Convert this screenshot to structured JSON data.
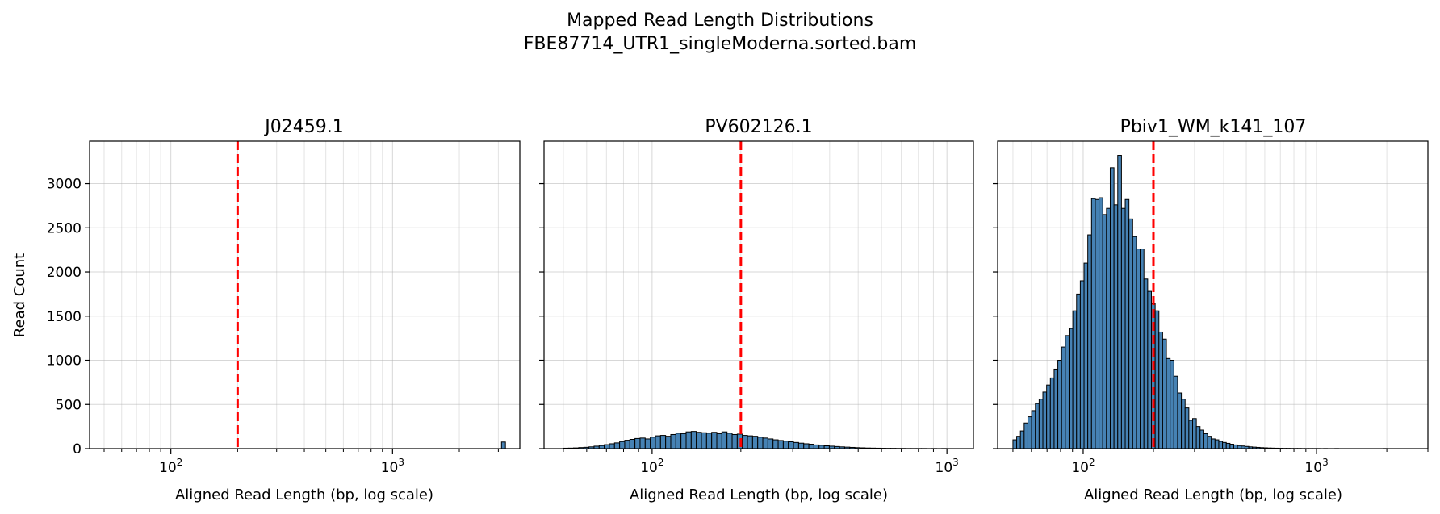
{
  "chart_data": {
    "type": "bar",
    "title_lines": [
      "Mapped Read Length Distributions",
      "FBE87714_UTR1_singleModerna.sorted.bam"
    ],
    "ylabel": "Read Count",
    "grid": true,
    "bar_color": "#4682b4",
    "bar_edge_color": "#000000",
    "reference_line": {
      "x": 200,
      "color": "#ff0000",
      "style": "dashed"
    },
    "y_ticks": [
      0,
      500,
      1000,
      1500,
      2000,
      2500,
      3000
    ],
    "ylim": [
      0,
      3480
    ],
    "panels": [
      {
        "title": "J02459.1",
        "xlabel": "Aligned Read Length (bp, log scale)",
        "xscale": "log",
        "xlim": [
          43,
          3750
        ],
        "x_ticks": [
          {
            "value": 100,
            "base": "10",
            "exp": "2"
          },
          {
            "value": 1000,
            "base": "10",
            "exp": "3"
          }
        ],
        "show_y_tick_labels": true,
        "bins": [
          {
            "x0": 3100,
            "x1": 3230,
            "count": 75
          }
        ]
      },
      {
        "title": "PV602126.1",
        "xlabel": "Aligned Read Length (bp, log scale)",
        "xscale": "log",
        "xlim": [
          43,
          1230
        ],
        "x_ticks": [
          {
            "value": 100,
            "base": "10",
            "exp": "2"
          },
          {
            "value": 1000,
            "base": "10",
            "exp": "3"
          }
        ],
        "show_y_tick_labels": false,
        "bin_range": [
          50,
          1000
        ],
        "counts": [
          5,
          6,
          8,
          12,
          15,
          20,
          28,
          35,
          45,
          55,
          65,
          80,
          95,
          105,
          115,
          120,
          110,
          130,
          145,
          150,
          140,
          160,
          175,
          170,
          190,
          195,
          185,
          180,
          175,
          185,
          170,
          190,
          175,
          160,
          165,
          150,
          145,
          140,
          130,
          120,
          110,
          100,
          92,
          85,
          78,
          70,
          62,
          55,
          50,
          42,
          38,
          32,
          28,
          24,
          20,
          17,
          14,
          11,
          9,
          7,
          6,
          5,
          4,
          3,
          3,
          2,
          2,
          1,
          1,
          1,
          1,
          0,
          1,
          0,
          1
        ]
      },
      {
        "title": "Pbiv1_WM_k141_107",
        "xlabel": "Aligned Read Length (bp, log scale)",
        "xscale": "log",
        "xlim": [
          43,
          3000
        ],
        "x_ticks": [
          {
            "value": 100,
            "base": "10",
            "exp": "2"
          },
          {
            "value": 1000,
            "base": "10",
            "exp": "3"
          }
        ],
        "show_y_tick_labels": false,
        "bin_range": [
          50,
          2800
        ],
        "counts": [
          100,
          140,
          200,
          290,
          360,
          430,
          510,
          560,
          640,
          720,
          800,
          900,
          1000,
          1150,
          1280,
          1360,
          1560,
          1750,
          1900,
          2100,
          2420,
          2830,
          2820,
          2840,
          2650,
          2720,
          3180,
          2760,
          3320,
          2720,
          2820,
          2600,
          2400,
          2260,
          2260,
          1920,
          1780,
          1640,
          1560,
          1320,
          1240,
          1020,
          1000,
          820,
          630,
          560,
          460,
          320,
          340,
          250,
          210,
          170,
          140,
          110,
          100,
          82,
          70,
          60,
          50,
          42,
          35,
          30,
          25,
          20,
          17,
          14,
          11,
          9,
          7,
          6,
          5,
          4,
          3,
          3,
          2,
          2,
          2,
          1,
          1,
          1,
          1,
          1,
          0,
          1,
          0,
          0,
          1,
          0,
          0,
          0,
          0,
          0,
          0,
          0,
          0,
          0,
          0,
          0,
          0,
          1,
          0,
          0,
          0,
          0,
          0,
          0,
          0,
          0,
          0
        ]
      }
    ]
  }
}
